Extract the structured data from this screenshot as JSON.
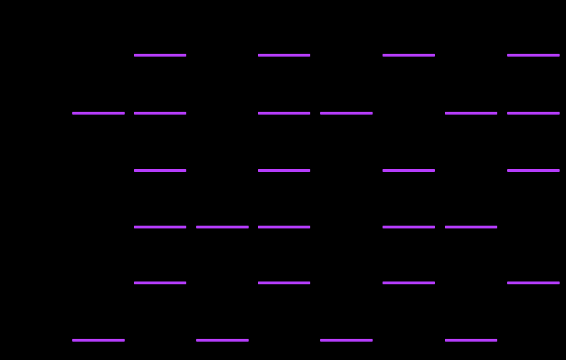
{
  "colors": {
    "background": "#000000",
    "segment": "#b43cfc"
  },
  "grid": {
    "rows": 6,
    "columns": 8,
    "filled": [
      [
        0,
        1,
        0,
        1,
        0,
        1,
        0,
        1
      ],
      [
        1,
        1,
        0,
        1,
        1,
        0,
        1,
        1
      ],
      [
        0,
        1,
        0,
        1,
        0,
        1,
        0,
        1
      ],
      [
        0,
        1,
        1,
        1,
        0,
        1,
        1,
        0
      ],
      [
        0,
        1,
        0,
        1,
        0,
        1,
        0,
        1
      ],
      [
        1,
        0,
        1,
        0,
        1,
        0,
        1,
        0
      ]
    ]
  }
}
